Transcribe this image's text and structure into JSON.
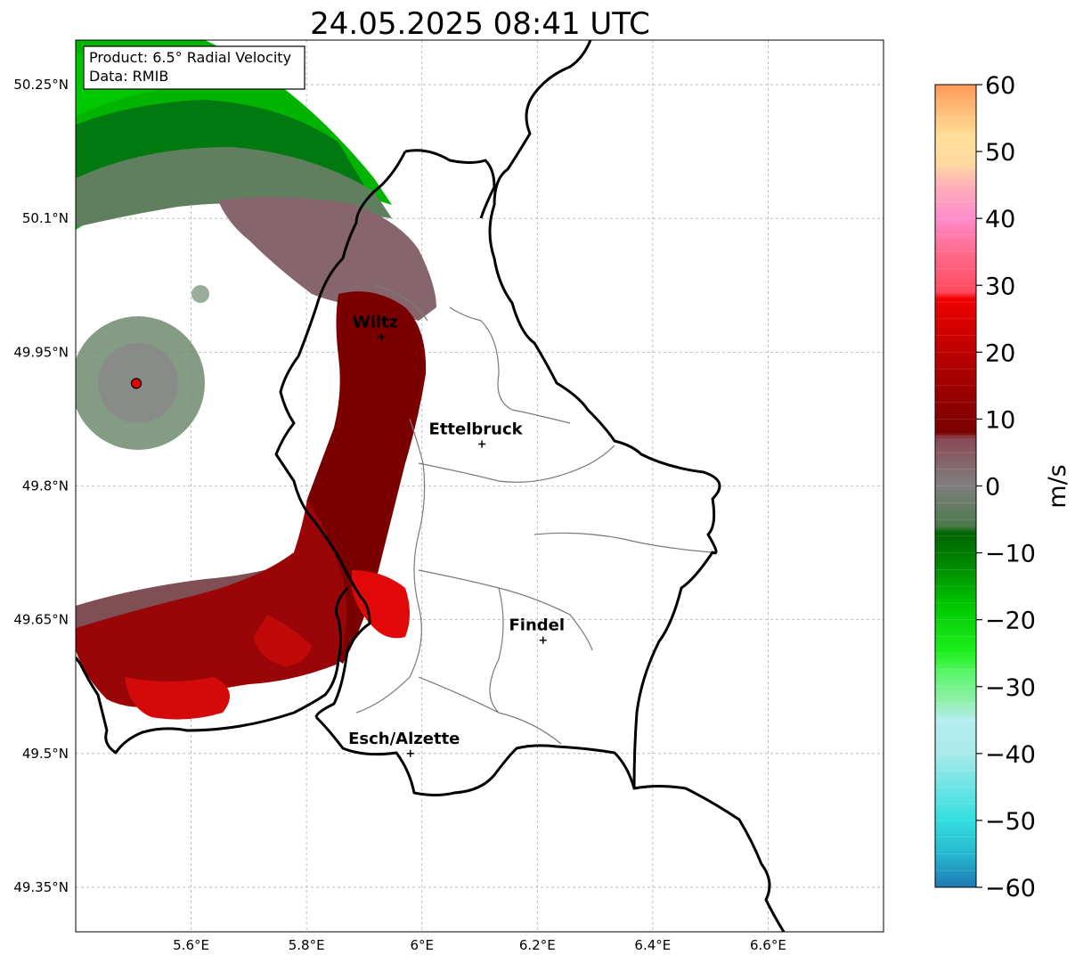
{
  "title": "24.05.2025 08:41 UTC",
  "info_box": {
    "product": "Product: 6.5° Radial Velocity",
    "data": "Data: RMIB"
  },
  "map": {
    "lon_range": [
      5.4,
      6.8
    ],
    "lat_range": [
      49.3,
      50.3
    ],
    "x_ticks": [
      {
        "value": 5.6,
        "label": "5.6°E"
      },
      {
        "value": 5.8,
        "label": "5.8°E"
      },
      {
        "value": 6.0,
        "label": "6°E"
      },
      {
        "value": 6.2,
        "label": "6.2°E"
      },
      {
        "value": 6.4,
        "label": "6.4°E"
      },
      {
        "value": 6.6,
        "label": "6.6°E"
      }
    ],
    "y_ticks": [
      {
        "value": 49.35,
        "label": "49.35°N"
      },
      {
        "value": 49.5,
        "label": "49.5°N"
      },
      {
        "value": 49.65,
        "label": "49.65°N"
      },
      {
        "value": 49.8,
        "label": "49.8°N"
      },
      {
        "value": 49.95,
        "label": "49.95°N"
      },
      {
        "value": 50.1,
        "label": "50.1°N"
      },
      {
        "value": 50.25,
        "label": "50.25°N"
      }
    ],
    "grid": true,
    "radar_site": {
      "lon": 5.505,
      "lat": 49.915
    },
    "cities": [
      {
        "name": "Wiltz",
        "lon": 5.93,
        "lat": 49.967
      },
      {
        "name": "Ettelbruck",
        "lon": 6.104,
        "lat": 49.847
      },
      {
        "name": "Findel",
        "lon": 6.21,
        "lat": 49.627
      },
      {
        "name": "Esch/Alzette",
        "lon": 5.98,
        "lat": 49.5
      }
    ]
  },
  "colorbar": {
    "label": "m/s",
    "min": -60,
    "max": 60,
    "ticks": [
      {
        "value": 60,
        "label": "60"
      },
      {
        "value": 50,
        "label": "50"
      },
      {
        "value": 40,
        "label": "40"
      },
      {
        "value": 30,
        "label": "30"
      },
      {
        "value": 20,
        "label": "20"
      },
      {
        "value": 10,
        "label": "10"
      },
      {
        "value": 0,
        "label": "0"
      },
      {
        "value": -10,
        "label": "−10"
      },
      {
        "value": -20,
        "label": "−20"
      },
      {
        "value": -30,
        "label": "−30"
      },
      {
        "value": -40,
        "label": "−40"
      },
      {
        "value": -50,
        "label": "−50"
      },
      {
        "value": -60,
        "label": "−60"
      }
    ],
    "stops": [
      {
        "value": -60,
        "color": "#1f78b4"
      },
      {
        "value": -55,
        "color": "#26b8d0"
      },
      {
        "value": -50,
        "color": "#33dede"
      },
      {
        "value": -40,
        "color": "#a8eaea"
      },
      {
        "value": -35,
        "color": "#b5eef0"
      },
      {
        "value": -32,
        "color": "#8ef0a8"
      },
      {
        "value": -28,
        "color": "#5cf56c"
      },
      {
        "value": -25,
        "color": "#1ef01e"
      },
      {
        "value": -18,
        "color": "#00c800"
      },
      {
        "value": -12,
        "color": "#008a00"
      },
      {
        "value": -7,
        "color": "#006400"
      },
      {
        "value": -6,
        "color": "#4d7a4d"
      },
      {
        "value": 0,
        "color": "#7f7f7f"
      },
      {
        "value": 7,
        "color": "#8a4a56"
      },
      {
        "value": 8,
        "color": "#7a0000"
      },
      {
        "value": 18,
        "color": "#b00000"
      },
      {
        "value": 28,
        "color": "#f00000"
      },
      {
        "value": 29,
        "color": "#ff4a60"
      },
      {
        "value": 35,
        "color": "#ff6c8c"
      },
      {
        "value": 40,
        "color": "#ff8ccc"
      },
      {
        "value": 45,
        "color": "#ffb0b8"
      },
      {
        "value": 48,
        "color": "#ffd8a0"
      },
      {
        "value": 52,
        "color": "#ffe09a"
      },
      {
        "value": 56,
        "color": "#ffbe78"
      },
      {
        "value": 60,
        "color": "#ff9a5a"
      }
    ]
  }
}
